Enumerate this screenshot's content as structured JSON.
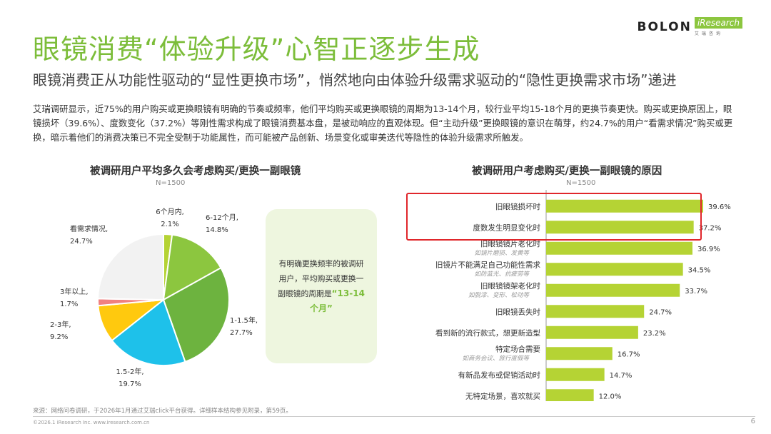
{
  "header": {
    "logo_brand": "BOLON",
    "logo_partner": "iResearch",
    "logo_partner_cn": "艾瑞咨询",
    "title": "眼镜消费“体验升级”心智正逐步生成",
    "subtitle": "眼镜消费正从功能性驱动的“显性更换市场”，悄然地向由体验升级需求驱动的“隐性更换需求市场”递进"
  },
  "intro": "艾瑞调研显示，近75%的用户购买或更换眼镜有明确的节奏或频率，他们平均购买或更换眼镜的周期为13-14个月，较行业平均15-18个月的更换节奏更快。购买或更换原因上，眼镜损坏（39.6%）、度数变化（37.2%）等刚性需求构成了眼镜消费基本盘，是被动响应的直观体现。但“主动升级”更换眼镜的意识在萌芽，约24.7%的用户“看需求情况”购买或更换，暗示着他们的消费决策已不完全受制于功能属性，而可能被产品创新、场景变化或审美迭代等隐性的体验升级需求所触发。",
  "callout": {
    "text": "有明确更换频率的被调研用户，平均购买或更换一副眼镜的周期是",
    "highlight": "“13-14个月”"
  },
  "chart_data": [
    {
      "type": "pie",
      "title": "被调研用户平均多久会考虑购买/更换一副眼镜",
      "note": "N=1500",
      "slices": [
        {
          "label": "6个月内,",
          "value": 2.1,
          "value_label": "2.1%",
          "color": "#b5d334"
        },
        {
          "label": "6-12个月,",
          "value": 14.8,
          "value_label": "14.8%",
          "color": "#8cc63f"
        },
        {
          "label": "1-1.5年,",
          "value": 27.7,
          "value_label": "27.7%",
          "color": "#6db33f"
        },
        {
          "label": "1.5-2年,",
          "value": 19.7,
          "value_label": "19.7%",
          "color": "#1ec1ea"
        },
        {
          "label": "2-3年,",
          "value": 9.2,
          "value_label": "9.2%",
          "color": "#ffc90e"
        },
        {
          "label": "3年以上,",
          "value": 1.7,
          "value_label": "1.7%",
          "color": "#f08080"
        },
        {
          "label": "看需求情况,",
          "value": 24.7,
          "value_label": "24.7%",
          "color": "#f2f2f2"
        }
      ]
    },
    {
      "type": "bar",
      "orientation": "horizontal",
      "title": "被调研用户考虑购买/更换一副眼镜的原因",
      "note": "N=1500",
      "color": "#b5d334",
      "highlight_color": "#e0262b",
      "xlim": [
        0,
        45
      ],
      "categories": [
        {
          "label": "旧眼镜损坏时",
          "sub": "",
          "value": 39.6,
          "value_label": "39.6%",
          "highlighted": true
        },
        {
          "label": "度数发生明显变化时",
          "sub": "",
          "value": 37.2,
          "value_label": "37.2%",
          "highlighted": true
        },
        {
          "label": "旧眼镜镜片老化时",
          "sub": "如镜片磨损、发黄等",
          "value": 36.9,
          "value_label": "36.9%",
          "highlighted": false
        },
        {
          "label": "旧镜片不能满足自己功能性需求",
          "sub": "如防蓝光、抗疲劳等",
          "value": 34.5,
          "value_label": "34.5%",
          "highlighted": false
        },
        {
          "label": "旧眼镜镜架老化时",
          "sub": "如脱漆、变形、松动等",
          "value": 33.7,
          "value_label": "33.7%",
          "highlighted": false
        },
        {
          "label": "旧眼镜丢失时",
          "sub": "",
          "value": 24.7,
          "value_label": "24.7%",
          "highlighted": false
        },
        {
          "label": "看到新的流行款式，想更新造型",
          "sub": "",
          "value": 23.2,
          "value_label": "23.2%",
          "highlighted": false
        },
        {
          "label": "特定场合需要",
          "sub": "如商务会议、旅行度假等",
          "value": 16.7,
          "value_label": "16.7%",
          "highlighted": false
        },
        {
          "label": "有新品发布或促销活动时",
          "sub": "",
          "value": 14.7,
          "value_label": "14.7%",
          "highlighted": false
        },
        {
          "label": "无特定场景，喜欢就买",
          "sub": "",
          "value": 12.0,
          "value_label": "12.0%",
          "highlighted": false
        }
      ]
    }
  ],
  "footer": {
    "source": "来源：网络问卷调研，于2026年1月通过艾瑞click平台获得。详细样本结构参见附录，第59页。",
    "copyright": "©2026.1 iResearch Inc. www.iresearch.com.cn",
    "page": "6"
  }
}
